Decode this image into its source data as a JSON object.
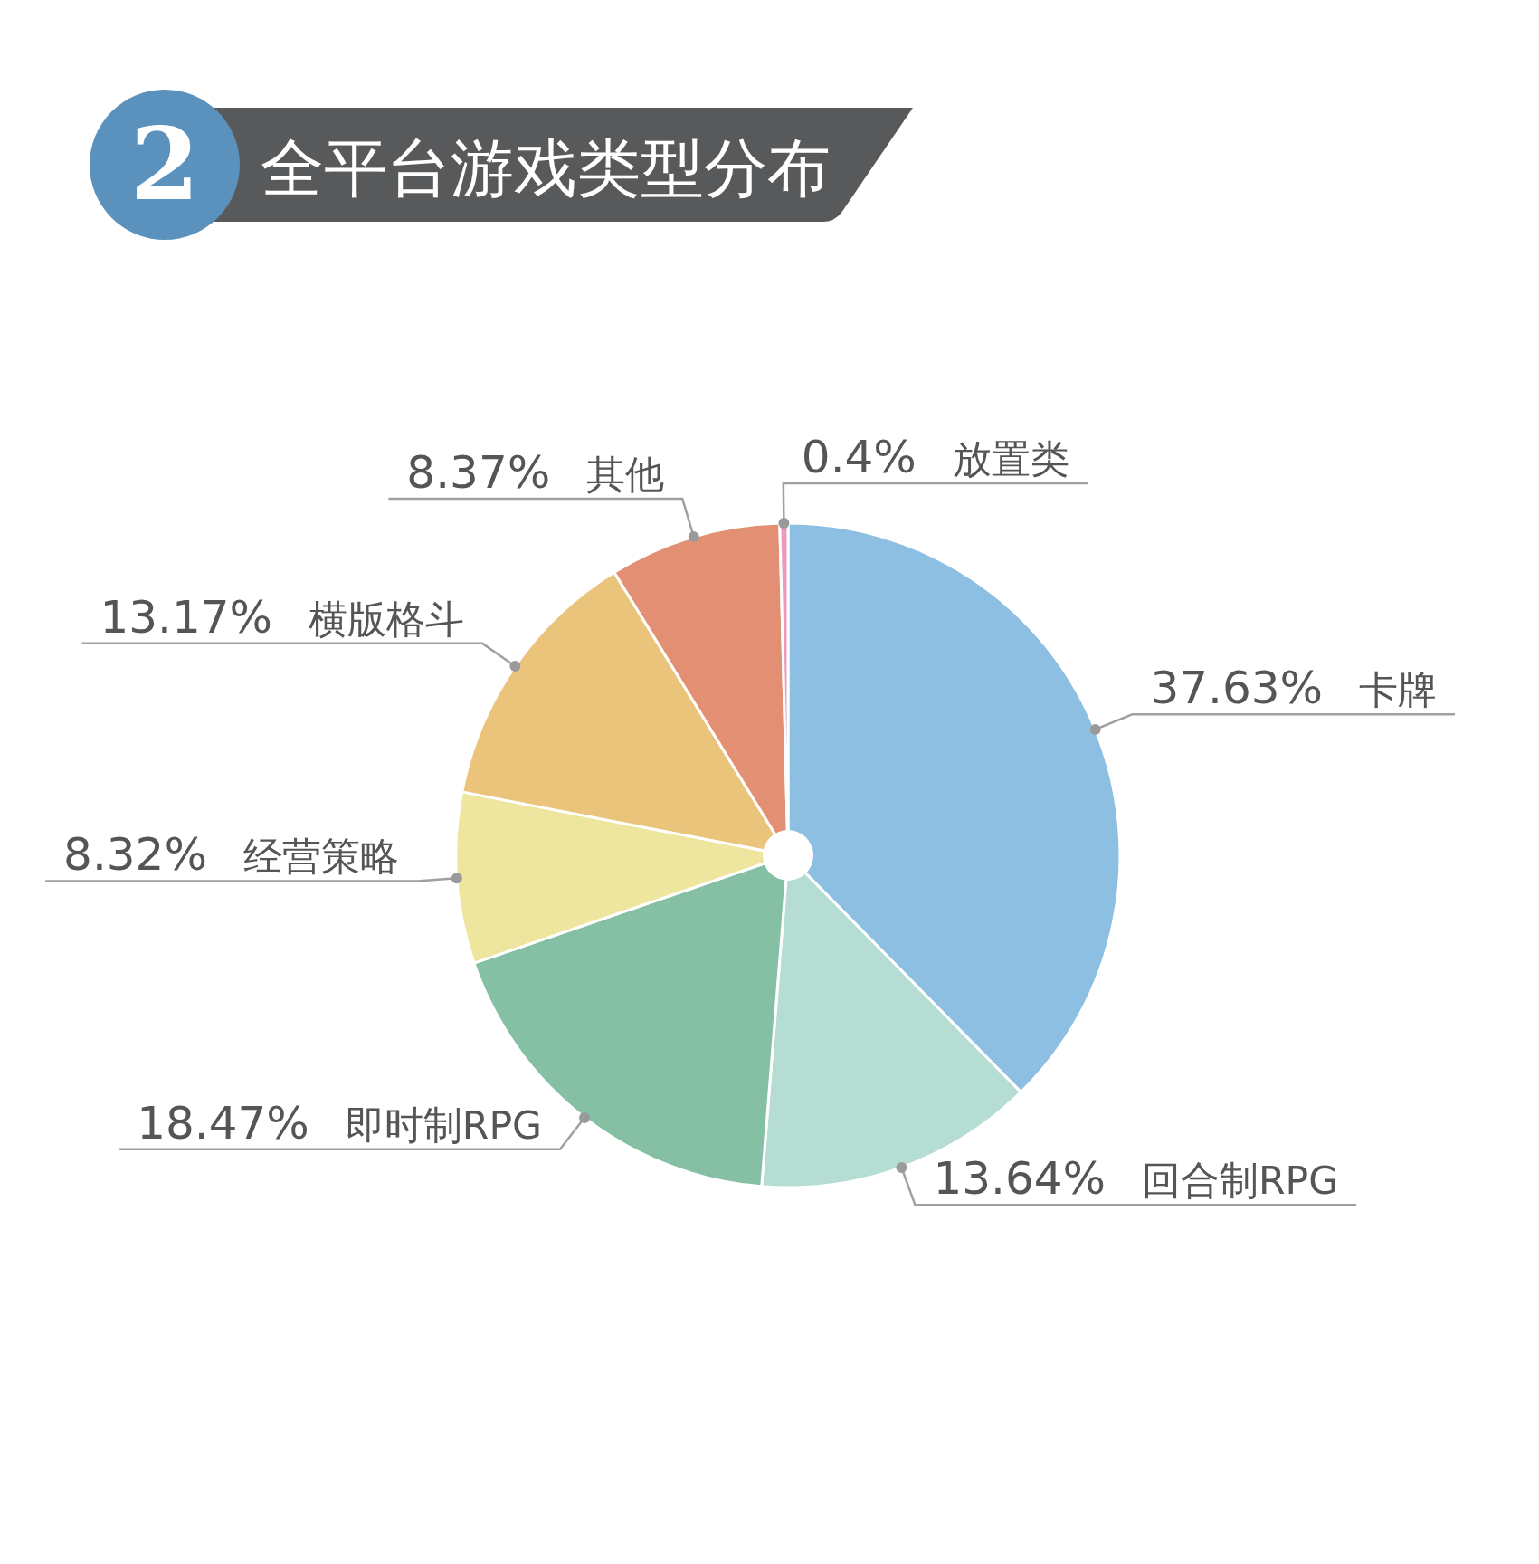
{
  "chart_data": {
    "type": "pie",
    "title": "全平台游戏类型分布",
    "annotations": [
      "2"
    ],
    "categories": [
      "卡牌",
      "回合制RPG",
      "即时制RPG",
      "经营策略",
      "横版格斗",
      "其他",
      "放置类"
    ],
    "values": [
      37.63,
      13.64,
      18.47,
      8.32,
      13.17,
      8.37,
      0.4
    ],
    "value_labels": [
      "37.63%",
      "13.64%",
      "18.47%",
      "8.32%",
      "13.17%",
      "8.37%",
      "0.4%"
    ],
    "colors": [
      "#8dbfe2",
      "#b5ddd3",
      "#86c0a4",
      "#eee69f",
      "#eac47a",
      "#e38f74",
      "#e79bbf"
    ]
  }
}
